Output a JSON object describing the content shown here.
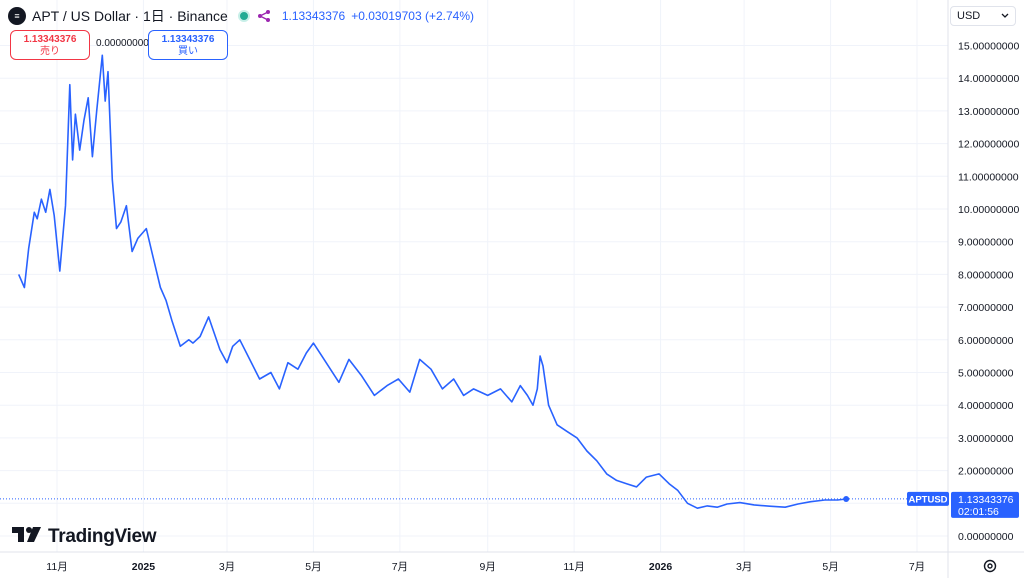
{
  "header": {
    "symbol_icon": "aptos-logo-icon",
    "title": "APT / US Dollar · 1日 · Binance",
    "market_status_icon": "market-open-dot-icon",
    "share_icon": "share-icon",
    "price": "1.13343376",
    "change": "+0.03019703 (+2.74%)"
  },
  "trade": {
    "sell_price": "1.13343376",
    "sell_label": "売り",
    "spread": "0.00000000",
    "buy_price": "1.13343376",
    "buy_label": "買い"
  },
  "currency": {
    "label": "USD",
    "dropdown_icon": "chevron-down-icon"
  },
  "price_tag": {
    "symbol": "APTUSD",
    "price": "1.13343376",
    "countdown": "02:01:56"
  },
  "branding": {
    "logo_text": "TradingView",
    "logo_icon": "tradingview-logo-icon"
  },
  "settings_icon": "gear-icon",
  "colors": {
    "line": "#2962ff",
    "sell": "#f23645",
    "buy": "#2962ff",
    "grid": "#f0f3fa",
    "text": "#131722"
  },
  "chart_data": {
    "type": "line",
    "series": [
      {
        "name": "APTUSD",
        "x": [
          "2024-10-05",
          "2024-10-09",
          "2024-10-12",
          "2024-10-16",
          "2024-10-18",
          "2024-10-21",
          "2024-10-24",
          "2024-10-27",
          "2024-10-30",
          "2024-11-03",
          "2024-11-07",
          "2024-11-10",
          "2024-11-12",
          "2024-11-14",
          "2024-11-17",
          "2024-11-20",
          "2024-11-23",
          "2024-11-26",
          "2024-11-29",
          "2024-12-03",
          "2024-12-05",
          "2024-12-07",
          "2024-12-10",
          "2024-12-13",
          "2024-12-16",
          "2024-12-20",
          "2024-12-24",
          "2024-12-28",
          "2025-01-03",
          "2025-01-08",
          "2025-01-13",
          "2025-01-17",
          "2025-01-21",
          "2025-01-27",
          "2025-02-02",
          "2025-02-05",
          "2025-02-10",
          "2025-02-16",
          "2025-02-24",
          "2025-03-01",
          "2025-03-05",
          "2025-03-10",
          "2025-03-17",
          "2025-03-24",
          "2025-04-01",
          "2025-04-07",
          "2025-04-13",
          "2025-04-20",
          "2025-04-26",
          "2025-05-01",
          "2025-05-07",
          "2025-05-13",
          "2025-05-19",
          "2025-05-26",
          "2025-06-04",
          "2025-06-13",
          "2025-06-22",
          "2025-06-30",
          "2025-07-08",
          "2025-07-15",
          "2025-07-23",
          "2025-07-31",
          "2025-08-08",
          "2025-08-15",
          "2025-08-22",
          "2025-09-01",
          "2025-09-10",
          "2025-09-18",
          "2025-09-24",
          "2025-09-29",
          "2025-10-03",
          "2025-10-06",
          "2025-10-08",
          "2025-10-10",
          "2025-10-14",
          "2025-10-20",
          "2025-10-27",
          "2025-11-03",
          "2025-11-10",
          "2025-11-17",
          "2025-11-24",
          "2025-12-01",
          "2025-12-08",
          "2025-12-15",
          "2025-12-22",
          "2025-12-31",
          "2026-01-07",
          "2026-01-13",
          "2026-01-20",
          "2026-01-27",
          "2026-02-03",
          "2026-02-10",
          "2026-02-17",
          "2026-02-26",
          "2026-03-08",
          "2026-03-19",
          "2026-03-30",
          "2026-04-08",
          "2026-04-17",
          "2026-04-27",
          "2026-05-06",
          "2026-05-12"
        ],
        "y": [
          8.0,
          7.6,
          8.8,
          9.9,
          9.7,
          10.3,
          9.9,
          10.6,
          9.8,
          8.1,
          10.1,
          13.8,
          11.5,
          12.9,
          11.8,
          12.7,
          13.4,
          11.6,
          13.0,
          14.7,
          13.3,
          14.2,
          10.9,
          9.4,
          9.6,
          10.1,
          8.7,
          9.1,
          9.4,
          8.5,
          7.6,
          7.2,
          6.6,
          5.8,
          6.0,
          5.9,
          6.1,
          6.7,
          5.7,
          5.3,
          5.8,
          6.0,
          5.4,
          4.8,
          5.0,
          4.5,
          5.3,
          5.1,
          5.6,
          5.9,
          5.5,
          5.1,
          4.7,
          5.4,
          4.9,
          4.3,
          4.6,
          4.8,
          4.4,
          5.4,
          5.1,
          4.5,
          4.8,
          4.3,
          4.5,
          4.3,
          4.5,
          4.1,
          4.6,
          4.3,
          4.0,
          4.5,
          5.5,
          5.2,
          4.0,
          3.4,
          3.2,
          3.0,
          2.6,
          2.3,
          1.9,
          1.7,
          1.6,
          1.5,
          1.8,
          1.9,
          1.6,
          1.4,
          1.0,
          0.85,
          0.92,
          0.88,
          0.98,
          1.02,
          0.95,
          0.91,
          0.88,
          0.98,
          1.05,
          1.1,
          1.1,
          1.13
        ]
      }
    ],
    "y_ticks": [
      "0.00000000",
      "1.00000000",
      "2.00000000",
      "3.00000000",
      "4.00000000",
      "5.00000000",
      "6.00000000",
      "7.00000000",
      "8.00000000",
      "9.00000000",
      "10.00000000",
      "11.00000000",
      "12.00000000",
      "13.00000000",
      "14.00000000",
      "15.00000000"
    ],
    "x_ticks": [
      "11月",
      "2025",
      "3月",
      "5月",
      "7月",
      "9月",
      "11月",
      "2026",
      "3月",
      "5月",
      "7月"
    ],
    "x_tick_dates": [
      "2024-11-01",
      "2025-01-01",
      "2025-03-01",
      "2025-05-01",
      "2025-07-01",
      "2025-09-01",
      "2025-11-01",
      "2026-01-01",
      "2026-03-01",
      "2026-05-01",
      "2026-07-01"
    ],
    "ylim": [
      0,
      15
    ],
    "last_value": 1.13343376,
    "grid": true
  }
}
